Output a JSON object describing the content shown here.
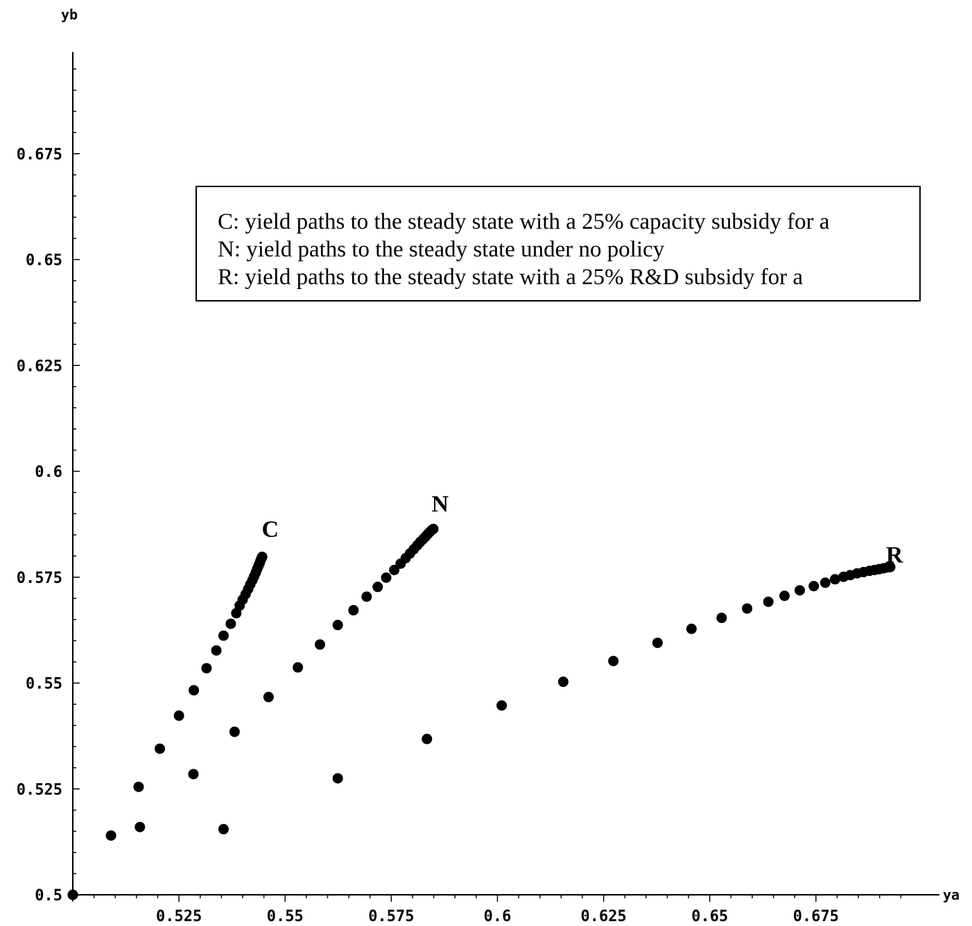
{
  "chart_data": {
    "type": "scatter",
    "xlabel": "ya",
    "ylabel": "yb",
    "xlim": [
      0.5,
      0.7
    ],
    "ylim": [
      0.5,
      0.7
    ],
    "x_ticks": [
      "0.525",
      "0.55",
      "0.575",
      "0.6",
      "0.625",
      "0.65",
      "0.675"
    ],
    "x_tick_values": [
      0.525,
      0.55,
      0.575,
      0.6,
      0.625,
      0.65,
      0.675
    ],
    "y_ticks": [
      "0.5",
      "0.525",
      "0.55",
      "0.575",
      "0.6",
      "0.625",
      "0.65",
      "0.675"
    ],
    "y_tick_values": [
      0.5,
      0.525,
      0.55,
      0.575,
      0.6,
      0.625,
      0.65,
      0.675
    ],
    "legend": [
      "C: yield paths to the steady state with a 25% capacity subsidy for a",
      "N: yield paths to the steady state under no policy",
      "R: yield paths to the steady state with a 25% R&D subsidy for a"
    ],
    "series": [
      {
        "name": "C",
        "label_at": [
          0.5465,
          0.5845
        ],
        "points": [
          [
            0.5,
            0.5
          ],
          [
            0.509,
            0.514
          ],
          [
            0.5155,
            0.5255
          ],
          [
            0.5205,
            0.5345
          ],
          [
            0.525,
            0.5423
          ],
          [
            0.5285,
            0.5483
          ],
          [
            0.5315,
            0.5535
          ],
          [
            0.5338,
            0.5577
          ],
          [
            0.5355,
            0.5612
          ],
          [
            0.5372,
            0.564
          ],
          [
            0.5385,
            0.5665
          ],
          [
            0.5393,
            0.5683
          ],
          [
            0.54,
            0.5697
          ],
          [
            0.5407,
            0.571
          ],
          [
            0.5413,
            0.5722
          ],
          [
            0.5418,
            0.5733
          ],
          [
            0.5423,
            0.5743
          ],
          [
            0.5427,
            0.5752
          ],
          [
            0.5431,
            0.5761
          ],
          [
            0.5434,
            0.5769
          ],
          [
            0.5437,
            0.5776
          ],
          [
            0.544,
            0.5783
          ],
          [
            0.5442,
            0.5789
          ],
          [
            0.5444,
            0.5794
          ],
          [
            0.5446,
            0.5798
          ]
        ]
      },
      {
        "name": "N",
        "label_at": [
          0.5865,
          0.5905
        ],
        "points": [
          [
            0.5,
            0.5
          ],
          [
            0.5158,
            0.516
          ],
          [
            0.5284,
            0.5285
          ],
          [
            0.5381,
            0.5385
          ],
          [
            0.5461,
            0.5467
          ],
          [
            0.553,
            0.5537
          ],
          [
            0.5582,
            0.5591
          ],
          [
            0.5624,
            0.5637
          ],
          [
            0.5661,
            0.5672
          ],
          [
            0.5692,
            0.5704
          ],
          [
            0.5718,
            0.5727
          ],
          [
            0.5738,
            0.5749
          ],
          [
            0.5757,
            0.5767
          ],
          [
            0.5772,
            0.5782
          ],
          [
            0.5784,
            0.5795
          ],
          [
            0.5794,
            0.5806
          ],
          [
            0.5803,
            0.5816
          ],
          [
            0.5811,
            0.5825
          ],
          [
            0.5818,
            0.5833
          ],
          [
            0.5825,
            0.584
          ],
          [
            0.5831,
            0.5846
          ],
          [
            0.5836,
            0.5852
          ],
          [
            0.5841,
            0.5857
          ],
          [
            0.5845,
            0.5861
          ],
          [
            0.5849,
            0.5864
          ]
        ]
      },
      {
        "name": "R",
        "label_at": [
          0.6935,
          0.5785
        ],
        "points": [
          [
            0.5,
            0.5
          ],
          [
            0.5355,
            0.5155
          ],
          [
            0.5624,
            0.5275
          ],
          [
            0.5834,
            0.5368
          ],
          [
            0.601,
            0.5447
          ],
          [
            0.6155,
            0.5503
          ],
          [
            0.6273,
            0.5552
          ],
          [
            0.6377,
            0.5595
          ],
          [
            0.6457,
            0.5628
          ],
          [
            0.6528,
            0.5654
          ],
          [
            0.6588,
            0.5676
          ],
          [
            0.6638,
            0.5692
          ],
          [
            0.6676,
            0.5706
          ],
          [
            0.6712,
            0.5719
          ],
          [
            0.6745,
            0.5729
          ],
          [
            0.6772,
            0.5737
          ],
          [
            0.6795,
            0.5745
          ],
          [
            0.6815,
            0.5751
          ],
          [
            0.6831,
            0.5755
          ],
          [
            0.6847,
            0.5759
          ],
          [
            0.6862,
            0.5762
          ],
          [
            0.6876,
            0.5765
          ],
          [
            0.6888,
            0.5767
          ],
          [
            0.6899,
            0.5769
          ],
          [
            0.6909,
            0.5771
          ],
          [
            0.6918,
            0.5773
          ],
          [
            0.6925,
            0.5774
          ]
        ]
      }
    ]
  }
}
